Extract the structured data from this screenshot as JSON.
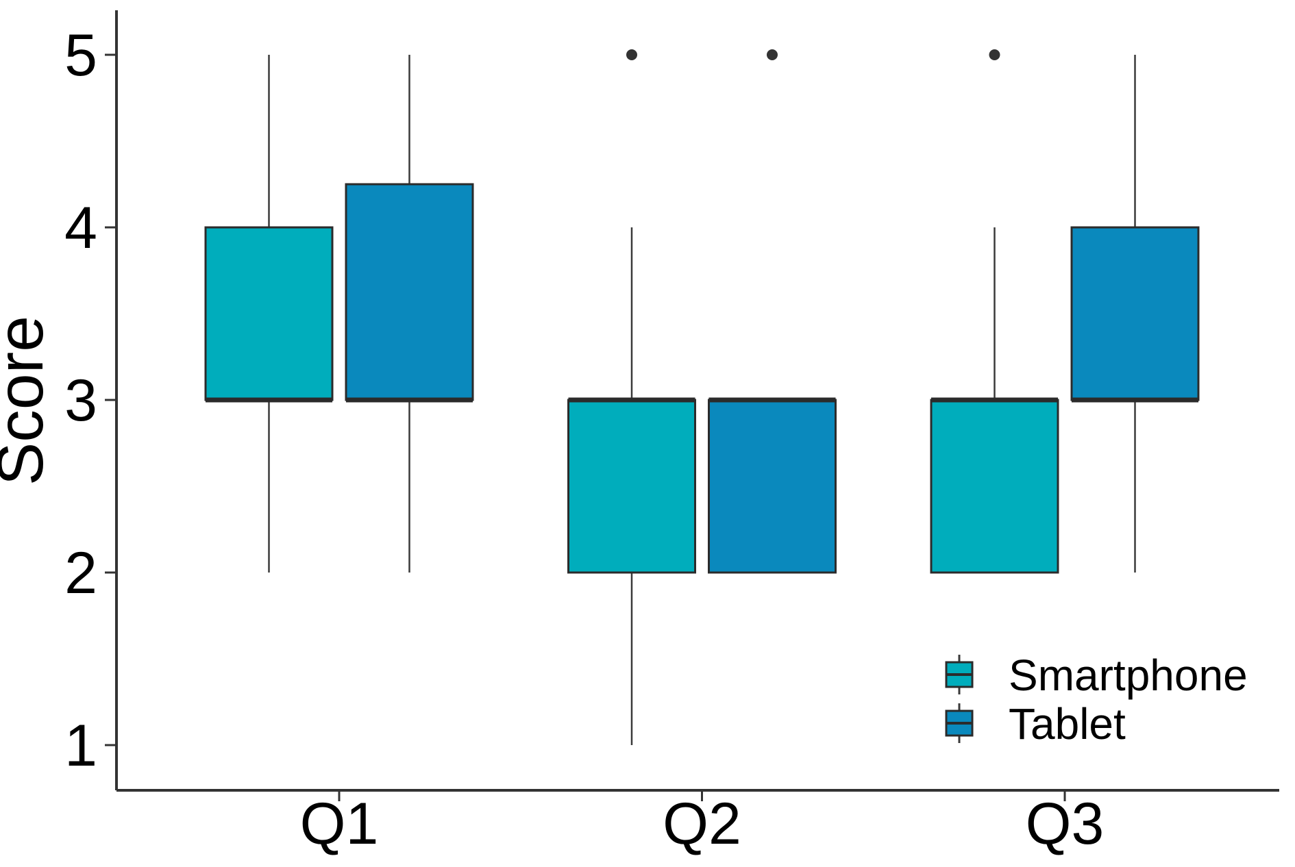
{
  "chart_data": {
    "type": "boxplot",
    "title": "",
    "xlabel": "",
    "ylabel": "Score",
    "categories": [
      "Q1",
      "Q2",
      "Q3"
    ],
    "y_ticks": [
      "1",
      "2",
      "3",
      "4",
      "5"
    ],
    "ylim": [
      0.75,
      5.26
    ],
    "grid": "off",
    "legend_position": "bottom-right",
    "series": [
      {
        "name": "Smartphone",
        "color": "#00ADBC",
        "boxes": [
          {
            "category": "Q1",
            "whisker_low": 2,
            "q1": 3,
            "median": 3,
            "q3": 4,
            "whisker_high": 5,
            "outliers": []
          },
          {
            "category": "Q2",
            "whisker_low": 1,
            "q1": 2,
            "median": 3,
            "q3": 3,
            "whisker_high": 4,
            "outliers": [
              5
            ]
          },
          {
            "category": "Q3",
            "whisker_low": 2,
            "q1": 2,
            "median": 3,
            "q3": 3,
            "whisker_high": 4,
            "outliers": [
              5
            ]
          }
        ]
      },
      {
        "name": "Tablet",
        "color": "#0A89BD",
        "boxes": [
          {
            "category": "Q1",
            "whisker_low": 2,
            "q1": 3,
            "median": 3,
            "q3": 4.25,
            "whisker_high": 5,
            "outliers": []
          },
          {
            "category": "Q2",
            "whisker_low": 2,
            "q1": 2,
            "median": 3,
            "q3": 3,
            "whisker_high": 3,
            "outliers": [
              5
            ]
          },
          {
            "category": "Q3",
            "whisker_low": 2,
            "q1": 3,
            "median": 3,
            "q3": 4,
            "whisker_high": 5,
            "outliers": []
          }
        ]
      }
    ]
  },
  "colors": {
    "axis_line": "#333333",
    "box_stroke": "#2b2b2b",
    "whisker": "#3a3a3a",
    "outlier": "#333333",
    "text": "#000000",
    "background": "#ffffff"
  }
}
